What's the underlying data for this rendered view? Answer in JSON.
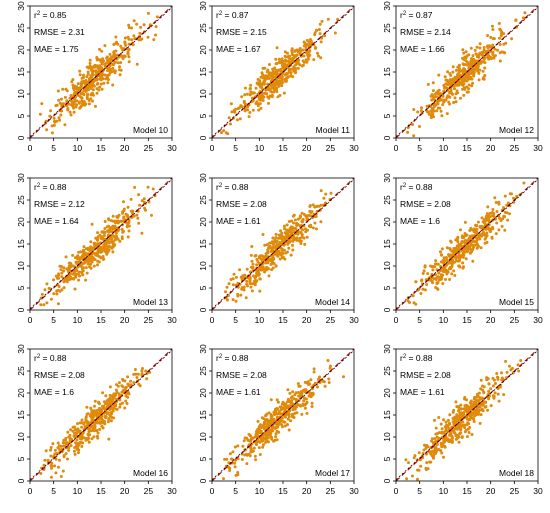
{
  "chart_data": [
    {
      "type": "scatter",
      "model": "Model 10",
      "r2": "0.85",
      "rmse": "RMSE = 2.31",
      "mae": "MAE = 1.75",
      "seed": 10,
      "noise": 2.31,
      "xlim": [
        0,
        30
      ],
      "ylim": [
        0,
        30
      ],
      "x_ticks": [
        0,
        5,
        10,
        15,
        20,
        25,
        30
      ],
      "y_ticks": [
        0,
        5,
        10,
        15,
        20,
        25,
        30
      ],
      "reference_line": "y = x",
      "point_color": "#E08A0B",
      "grid": false
    },
    {
      "type": "scatter",
      "model": "Model 11",
      "r2": "0.87",
      "rmse": "RMSE = 2.15",
      "mae": "MAE = 1.67",
      "seed": 11,
      "noise": 2.15,
      "xlim": [
        0,
        30
      ],
      "ylim": [
        0,
        30
      ],
      "x_ticks": [
        0,
        5,
        10,
        15,
        20,
        25,
        30
      ],
      "y_ticks": [
        0,
        5,
        10,
        15,
        20,
        25,
        30
      ],
      "reference_line": "y = x",
      "point_color": "#E08A0B",
      "grid": false
    },
    {
      "type": "scatter",
      "model": "Model 12",
      "r2": "0.87",
      "rmse": "RMSE = 2.14",
      "mae": "MAE = 1.66",
      "seed": 12,
      "noise": 2.14,
      "xlim": [
        0,
        30
      ],
      "ylim": [
        0,
        30
      ],
      "x_ticks": [
        0,
        5,
        10,
        15,
        20,
        25,
        30
      ],
      "y_ticks": [
        0,
        5,
        10,
        15,
        20,
        25,
        30
      ],
      "reference_line": "y = x",
      "point_color": "#E08A0B",
      "grid": false
    },
    {
      "type": "scatter",
      "model": "Model 13",
      "r2": "0.88",
      "rmse": "RMSE = 2.12",
      "mae": "MAE = 1.64",
      "seed": 13,
      "noise": 2.12,
      "xlim": [
        0,
        30
      ],
      "ylim": [
        0,
        30
      ],
      "x_ticks": [
        0,
        5,
        10,
        15,
        20,
        25,
        30
      ],
      "y_ticks": [
        0,
        5,
        10,
        15,
        20,
        25,
        30
      ],
      "reference_line": "y = x",
      "point_color": "#E08A0B",
      "grid": false
    },
    {
      "type": "scatter",
      "model": "Model 14",
      "r2": "0.88",
      "rmse": "RMSE = 2.08",
      "mae": "MAE = 1.61",
      "seed": 14,
      "noise": 2.08,
      "xlim": [
        0,
        30
      ],
      "ylim": [
        0,
        30
      ],
      "x_ticks": [
        0,
        5,
        10,
        15,
        20,
        25,
        30
      ],
      "y_ticks": [
        0,
        5,
        10,
        15,
        20,
        25,
        30
      ],
      "reference_line": "y = x",
      "point_color": "#E08A0B",
      "grid": false
    },
    {
      "type": "scatter",
      "model": "Model 15",
      "r2": "0.88",
      "rmse": "RMSE = 2.08",
      "mae": "MAE = 1.6",
      "seed": 15,
      "noise": 2.08,
      "xlim": [
        0,
        30
      ],
      "ylim": [
        0,
        30
      ],
      "x_ticks": [
        0,
        5,
        10,
        15,
        20,
        25,
        30
      ],
      "y_ticks": [
        0,
        5,
        10,
        15,
        20,
        25,
        30
      ],
      "reference_line": "y = x",
      "point_color": "#E08A0B",
      "grid": false
    },
    {
      "type": "scatter",
      "model": "Model 16",
      "r2": "0.88",
      "rmse": "RMSE = 2.08",
      "mae": "MAE = 1.6",
      "seed": 16,
      "noise": 2.08,
      "xlim": [
        0,
        30
      ],
      "ylim": [
        0,
        30
      ],
      "x_ticks": [
        0,
        5,
        10,
        15,
        20,
        25,
        30
      ],
      "y_ticks": [
        0,
        5,
        10,
        15,
        20,
        25,
        30
      ],
      "reference_line": "y = x",
      "point_color": "#E08A0B",
      "grid": false
    },
    {
      "type": "scatter",
      "model": "Model 17",
      "r2": "0.88",
      "rmse": "RMSE = 2.08",
      "mae": "MAE = 1.61",
      "seed": 17,
      "noise": 2.08,
      "xlim": [
        0,
        30
      ],
      "ylim": [
        0,
        30
      ],
      "x_ticks": [
        0,
        5,
        10,
        15,
        20,
        25,
        30
      ],
      "y_ticks": [
        0,
        5,
        10,
        15,
        20,
        25,
        30
      ],
      "reference_line": "y = x",
      "point_color": "#E08A0B",
      "grid": false
    },
    {
      "type": "scatter",
      "model": "Model 18",
      "r2": "0.88",
      "rmse": "RMSE = 2.08",
      "mae": "MAE = 1.61",
      "seed": 18,
      "noise": 2.08,
      "xlim": [
        0,
        30
      ],
      "ylim": [
        0,
        30
      ],
      "x_ticks": [
        0,
        5,
        10,
        15,
        20,
        25,
        30
      ],
      "y_ticks": [
        0,
        5,
        10,
        15,
        20,
        25,
        30
      ],
      "reference_line": "y = x",
      "point_color": "#E08A0B",
      "grid": false
    }
  ],
  "colors": {
    "points": "#E08A0B",
    "reference_line": "#C00000",
    "fit_line": "#000000",
    "axis": "#000000"
  }
}
